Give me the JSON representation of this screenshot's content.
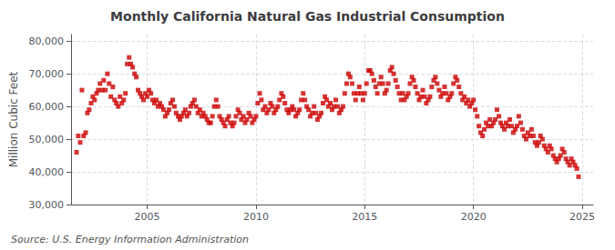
{
  "chart_data": {
    "type": "scatter",
    "title": "Monthly California Natural Gas Industrial Consumption",
    "ylabel": "Million Cubic Feet",
    "annotations": [
      "Source: U.S. Energy Information Administration"
    ],
    "color": "#cc0000",
    "marker": "square",
    "grid": true,
    "xlim": [
      2001.5,
      2025.5
    ],
    "xticks": [
      2005,
      2010,
      2015,
      2020,
      2025
    ],
    "ylim": [
      30000,
      82000
    ],
    "yticks": [
      {
        "value": 30000,
        "label": "30,000"
      },
      {
        "value": 40000,
        "label": "40,000"
      },
      {
        "value": 50000,
        "label": "50,000"
      },
      {
        "value": 60000,
        "label": "60,000"
      },
      {
        "value": 70000,
        "label": "70,000"
      },
      {
        "value": 80000,
        "label": "80,000"
      }
    ],
    "x": [
      2001.75,
      2001.83,
      2001.92,
      2002.0,
      2002.08,
      2002.17,
      2002.25,
      2002.33,
      2002.42,
      2002.5,
      2002.58,
      2002.67,
      2002.75,
      2002.83,
      2002.92,
      2003.0,
      2003.08,
      2003.17,
      2003.25,
      2003.33,
      2003.42,
      2003.5,
      2003.58,
      2003.67,
      2003.75,
      2003.83,
      2003.92,
      2004.0,
      2004.08,
      2004.17,
      2004.25,
      2004.33,
      2004.42,
      2004.5,
      2004.58,
      2004.67,
      2004.75,
      2004.83,
      2004.92,
      2005.0,
      2005.08,
      2005.17,
      2005.25,
      2005.33,
      2005.42,
      2005.5,
      2005.58,
      2005.67,
      2005.75,
      2005.83,
      2005.92,
      2006.0,
      2006.08,
      2006.17,
      2006.25,
      2006.33,
      2006.42,
      2006.5,
      2006.58,
      2006.67,
      2006.75,
      2006.83,
      2006.92,
      2007.0,
      2007.08,
      2007.17,
      2007.25,
      2007.33,
      2007.42,
      2007.5,
      2007.58,
      2007.67,
      2007.75,
      2007.83,
      2007.92,
      2008.0,
      2008.08,
      2008.17,
      2008.25,
      2008.33,
      2008.42,
      2008.5,
      2008.58,
      2008.67,
      2008.75,
      2008.83,
      2008.92,
      2009.0,
      2009.08,
      2009.17,
      2009.25,
      2009.33,
      2009.42,
      2009.5,
      2009.58,
      2009.67,
      2009.75,
      2009.83,
      2009.92,
      2010.0,
      2010.08,
      2010.17,
      2010.25,
      2010.33,
      2010.42,
      2010.5,
      2010.58,
      2010.67,
      2010.75,
      2010.83,
      2010.92,
      2011.0,
      2011.08,
      2011.17,
      2011.25,
      2011.33,
      2011.42,
      2011.5,
      2011.58,
      2011.67,
      2011.75,
      2011.83,
      2011.92,
      2012.0,
      2012.08,
      2012.17,
      2012.25,
      2012.33,
      2012.42,
      2012.5,
      2012.58,
      2012.67,
      2012.75,
      2012.83,
      2012.92,
      2013.0,
      2013.08,
      2013.17,
      2013.25,
      2013.33,
      2013.42,
      2013.5,
      2013.58,
      2013.67,
      2013.75,
      2013.83,
      2013.92,
      2014.0,
      2014.08,
      2014.17,
      2014.25,
      2014.33,
      2014.42,
      2014.5,
      2014.58,
      2014.67,
      2014.75,
      2014.83,
      2014.92,
      2015.0,
      2015.08,
      2015.17,
      2015.25,
      2015.33,
      2015.42,
      2015.5,
      2015.58,
      2015.67,
      2015.75,
      2015.83,
      2015.92,
      2016.0,
      2016.08,
      2016.17,
      2016.25,
      2016.33,
      2016.42,
      2016.5,
      2016.58,
      2016.67,
      2016.75,
      2016.83,
      2016.92,
      2017.0,
      2017.08,
      2017.17,
      2017.25,
      2017.33,
      2017.42,
      2017.5,
      2017.58,
      2017.67,
      2017.75,
      2017.83,
      2017.92,
      2018.0,
      2018.08,
      2018.17,
      2018.25,
      2018.33,
      2018.42,
      2018.5,
      2018.58,
      2018.67,
      2018.75,
      2018.83,
      2018.92,
      2019.0,
      2019.08,
      2019.17,
      2019.25,
      2019.33,
      2019.42,
      2019.5,
      2019.58,
      2019.67,
      2019.75,
      2019.83,
      2019.92,
      2020.0,
      2020.08,
      2020.17,
      2020.25,
      2020.33,
      2020.42,
      2020.5,
      2020.58,
      2020.67,
      2020.75,
      2020.83,
      2020.92,
      2021.0,
      2021.08,
      2021.17,
      2021.25,
      2021.33,
      2021.42,
      2021.5,
      2021.58,
      2021.67,
      2021.75,
      2021.83,
      2021.92,
      2022.0,
      2022.08,
      2022.17,
      2022.25,
      2022.33,
      2022.42,
      2022.5,
      2022.58,
      2022.67,
      2022.75,
      2022.83,
      2022.92,
      2023.0,
      2023.08,
      2023.17,
      2023.25,
      2023.33,
      2023.42,
      2023.5,
      2023.58,
      2023.67,
      2023.75,
      2023.83,
      2023.92,
      2024.0,
      2024.08,
      2024.17,
      2024.25,
      2024.33,
      2024.42,
      2024.5,
      2024.58,
      2024.67,
      2024.75,
      2024.83
    ],
    "values": [
      46000,
      51000,
      49000,
      65000,
      51000,
      52000,
      58000,
      59000,
      61000,
      63000,
      62000,
      64000,
      65000,
      67000,
      65000,
      68000,
      65000,
      70000,
      67000,
      63000,
      66000,
      62000,
      61000,
      60000,
      63000,
      61000,
      62000,
      64000,
      73000,
      75000,
      73000,
      72000,
      70000,
      69000,
      65000,
      64000,
      63000,
      62000,
      64000,
      63000,
      65000,
      64000,
      62000,
      61000,
      62000,
      60000,
      61000,
      60000,
      59000,
      57000,
      58000,
      59000,
      61000,
      62000,
      60000,
      58000,
      57000,
      56000,
      57000,
      58000,
      59000,
      57000,
      58000,
      60000,
      61000,
      62000,
      60000,
      58000,
      59000,
      57000,
      58000,
      57000,
      56000,
      55000,
      55000,
      57000,
      60000,
      62000,
      60000,
      57000,
      56000,
      55000,
      54000,
      56000,
      57000,
      55000,
      54000,
      55000,
      57000,
      59000,
      58000,
      56000,
      57000,
      55000,
      56000,
      58000,
      57000,
      55000,
      56000,
      57000,
      61000,
      64000,
      62000,
      59000,
      60000,
      58000,
      59000,
      61000,
      60000,
      58000,
      59000,
      60000,
      62000,
      64000,
      63000,
      61000,
      59000,
      58000,
      59000,
      60000,
      59000,
      57000,
      58000,
      59000,
      62000,
      64000,
      62000,
      60000,
      59000,
      57000,
      58000,
      60000,
      58000,
      56000,
      57000,
      58000,
      61000,
      63000,
      62000,
      60000,
      61000,
      59000,
      60000,
      62000,
      60000,
      58000,
      59000,
      60000,
      64000,
      67000,
      70000,
      69000,
      67000,
      64000,
      62000,
      64000,
      66000,
      64000,
      62000,
      64000,
      67000,
      71000,
      71000,
      70000,
      68000,
      66000,
      64000,
      67000,
      69000,
      67000,
      64000,
      65000,
      67000,
      71000,
      72000,
      70000,
      68000,
      66000,
      64000,
      62000,
      64000,
      62000,
      63000,
      64000,
      67000,
      69000,
      68000,
      66000,
      64000,
      62000,
      63000,
      65000,
      63000,
      61000,
      62000,
      63000,
      66000,
      68000,
      69000,
      67000,
      65000,
      63000,
      64000,
      66000,
      64000,
      62000,
      63000,
      64000,
      67000,
      69000,
      68000,
      66000,
      64000,
      62000,
      63000,
      61000,
      62000,
      60000,
      61000,
      62000,
      59000,
      57000,
      54000,
      52000,
      51000,
      53000,
      55000,
      54000,
      56000,
      54000,
      55000,
      56000,
      59000,
      57000,
      55000,
      54000,
      53000,
      55000,
      54000,
      56000,
      54000,
      52000,
      53000,
      54000,
      57000,
      55000,
      53000,
      51000,
      50000,
      52000,
      51000,
      53000,
      51000,
      49000,
      48000,
      49000,
      51000,
      50000,
      48000,
      47000,
      46000,
      48000,
      47000,
      45000,
      44000,
      43000,
      44000,
      45000,
      47000,
      46000,
      44000,
      43000,
      42000,
      44000,
      43000,
      42000,
      41000,
      38500
    ]
  }
}
